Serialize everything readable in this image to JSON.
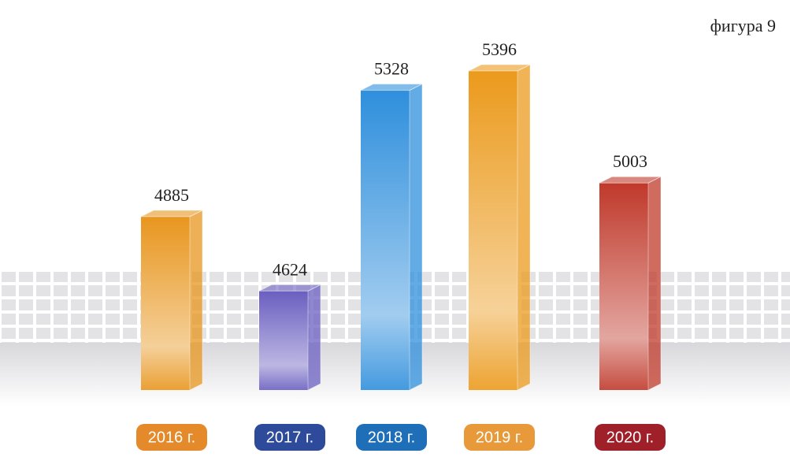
{
  "chart_data": {
    "type": "bar",
    "title": "фигура 9",
    "categories": [
      "2016 г.",
      "2017 г.",
      "2018 г.",
      "2019 г.",
      "2020 г."
    ],
    "values": [
      4885,
      4624,
      5328,
      5396,
      5003
    ],
    "colors": [
      "#e8961e",
      "#6a5fc0",
      "#2f8fdc",
      "#eb9a1c",
      "#c0392b"
    ],
    "label_colors": [
      "#e48a2a",
      "#2e4a9a",
      "#1f6fb8",
      "#e89a3a",
      "#a0202a"
    ]
  }
}
